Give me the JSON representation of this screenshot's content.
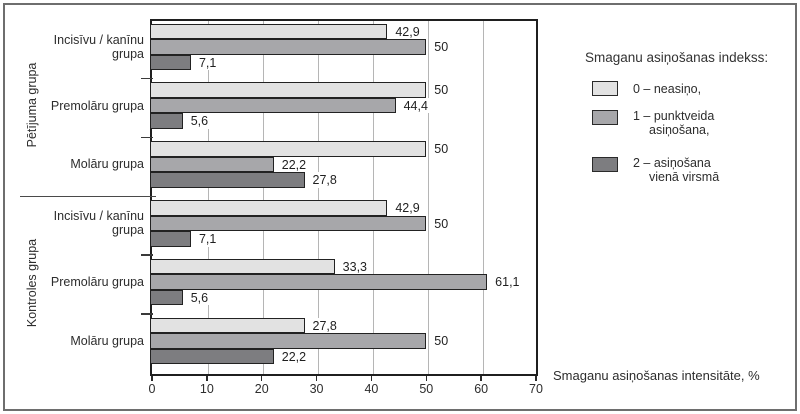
{
  "chart_data": {
    "type": "bar",
    "orientation": "horizontal",
    "xlabel": "Smaganu asiņošanas intensitāte, %",
    "xlim": [
      0,
      70
    ],
    "xticks": [
      0,
      10,
      20,
      30,
      40,
      50,
      60,
      70
    ],
    "grid": "vertical",
    "legend_position": "right",
    "legend": {
      "title": "Smaganu asiņošanas indekss:",
      "items": [
        {
          "lines": [
            "0 – neasiņo,"
          ]
        },
        {
          "lines": [
            "1 – punktveida",
            "asiņošana,"
          ]
        },
        {
          "lines": [
            "2 – asiņošana",
            "vienā virsmā"
          ]
        }
      ]
    },
    "series": [
      {
        "name": "0 – neasiņo",
        "color": "#e2e2e2",
        "values": [
          42.9,
          50,
          50,
          42.9,
          33.3,
          27.8
        ]
      },
      {
        "name": "1 – punktveida asiņošana",
        "color": "#a7a7aa",
        "values": [
          50,
          44.4,
          22.2,
          50,
          61.1,
          50
        ]
      },
      {
        "name": "2 – asiņošana vienā virsmā",
        "color": "#7d7d80",
        "values": [
          7.1,
          5.6,
          27.8,
          7.1,
          5.6,
          22.2
        ]
      }
    ],
    "groups": [
      {
        "label": "Pētījuma grupa",
        "categories": [
          {
            "label_lines": [
              "Incisīvu / kanīnu",
              "grupa"
            ],
            "bars": [
              {
                "value": 42.9,
                "label": "42,9"
              },
              {
                "value": 50,
                "label": "50"
              },
              {
                "value": 7.1,
                "label": "7,1"
              }
            ]
          },
          {
            "label_lines": [
              "Premolāru grupa"
            ],
            "bars": [
              {
                "value": 50,
                "label": "50"
              },
              {
                "value": 44.4,
                "label": "44,4"
              },
              {
                "value": 5.6,
                "label": "5,6"
              }
            ]
          },
          {
            "label_lines": [
              "Molāru grupa"
            ],
            "bars": [
              {
                "value": 50,
                "label": "50"
              },
              {
                "value": 22.2,
                "label": "22,2"
              },
              {
                "value": 27.8,
                "label": "27,8"
              }
            ]
          }
        ]
      },
      {
        "label": "Kontroles grupa",
        "categories": [
          {
            "label_lines": [
              "Incisīvu / kanīnu",
              "grupa"
            ],
            "bars": [
              {
                "value": 42.9,
                "label": "42,9"
              },
              {
                "value": 50,
                "label": "50"
              },
              {
                "value": 7.1,
                "label": "7,1"
              }
            ]
          },
          {
            "label_lines": [
              "Premolāru grupa"
            ],
            "bars": [
              {
                "value": 33.3,
                "label": "33,3"
              },
              {
                "value": 61.1,
                "label": "61,1"
              },
              {
                "value": 5.6,
                "label": "5,6"
              }
            ]
          },
          {
            "label_lines": [
              "Molāru grupa"
            ],
            "bars": [
              {
                "value": 27.8,
                "label": "27,8"
              },
              {
                "value": 50,
                "label": "50"
              },
              {
                "value": 22.2,
                "label": "22,2"
              }
            ]
          }
        ]
      }
    ],
    "colors": {
      "bar_border": "#222222",
      "gridline": "#b5b5b5",
      "axis": "#1f1f1f",
      "text": "#2d2d2d",
      "frame": "#6e6e6e"
    }
  }
}
